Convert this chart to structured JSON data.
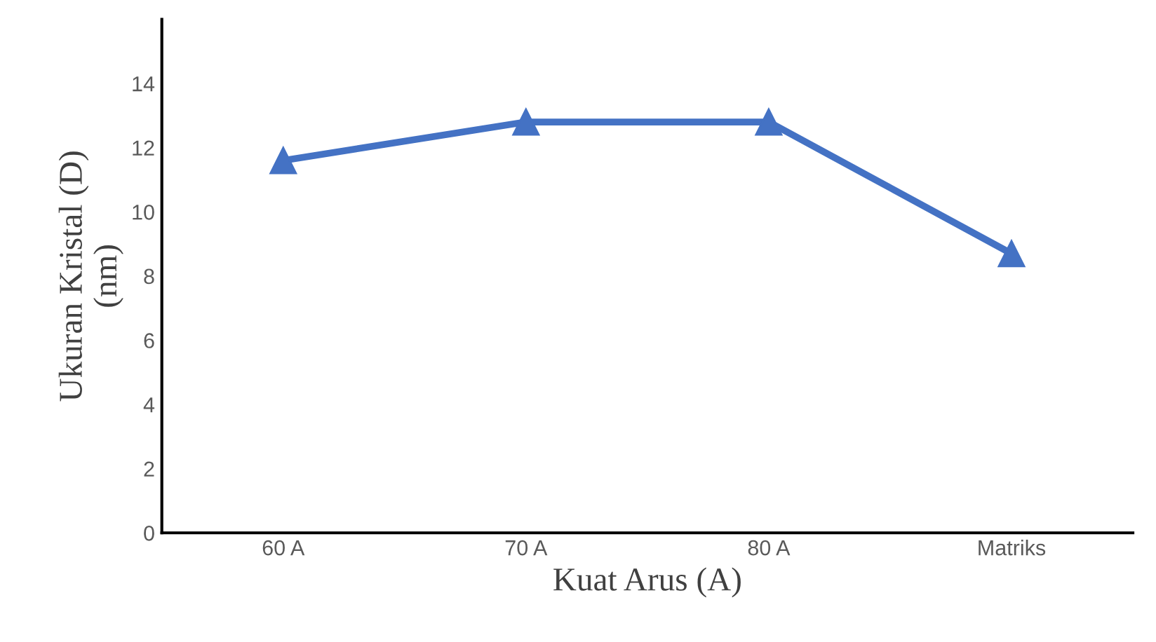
{
  "chart_data": {
    "type": "line",
    "xlabel": "Kuat Arus (A)",
    "ylabel": "Ukuran Kristal (D)\n(nm)",
    "categories": [
      "60 A",
      "70 A",
      "80 A",
      "Matriks"
    ],
    "series": [
      {
        "color": "#4472c4",
        "values": [
          11.6,
          12.8,
          12.8,
          8.7
        ]
      }
    ],
    "ylim": [
      0,
      16
    ],
    "yticks": [
      0,
      2,
      4,
      6,
      8,
      10,
      12,
      14
    ],
    "grid": false,
    "legend": false,
    "marker": "triangle",
    "line_style": "solid"
  }
}
